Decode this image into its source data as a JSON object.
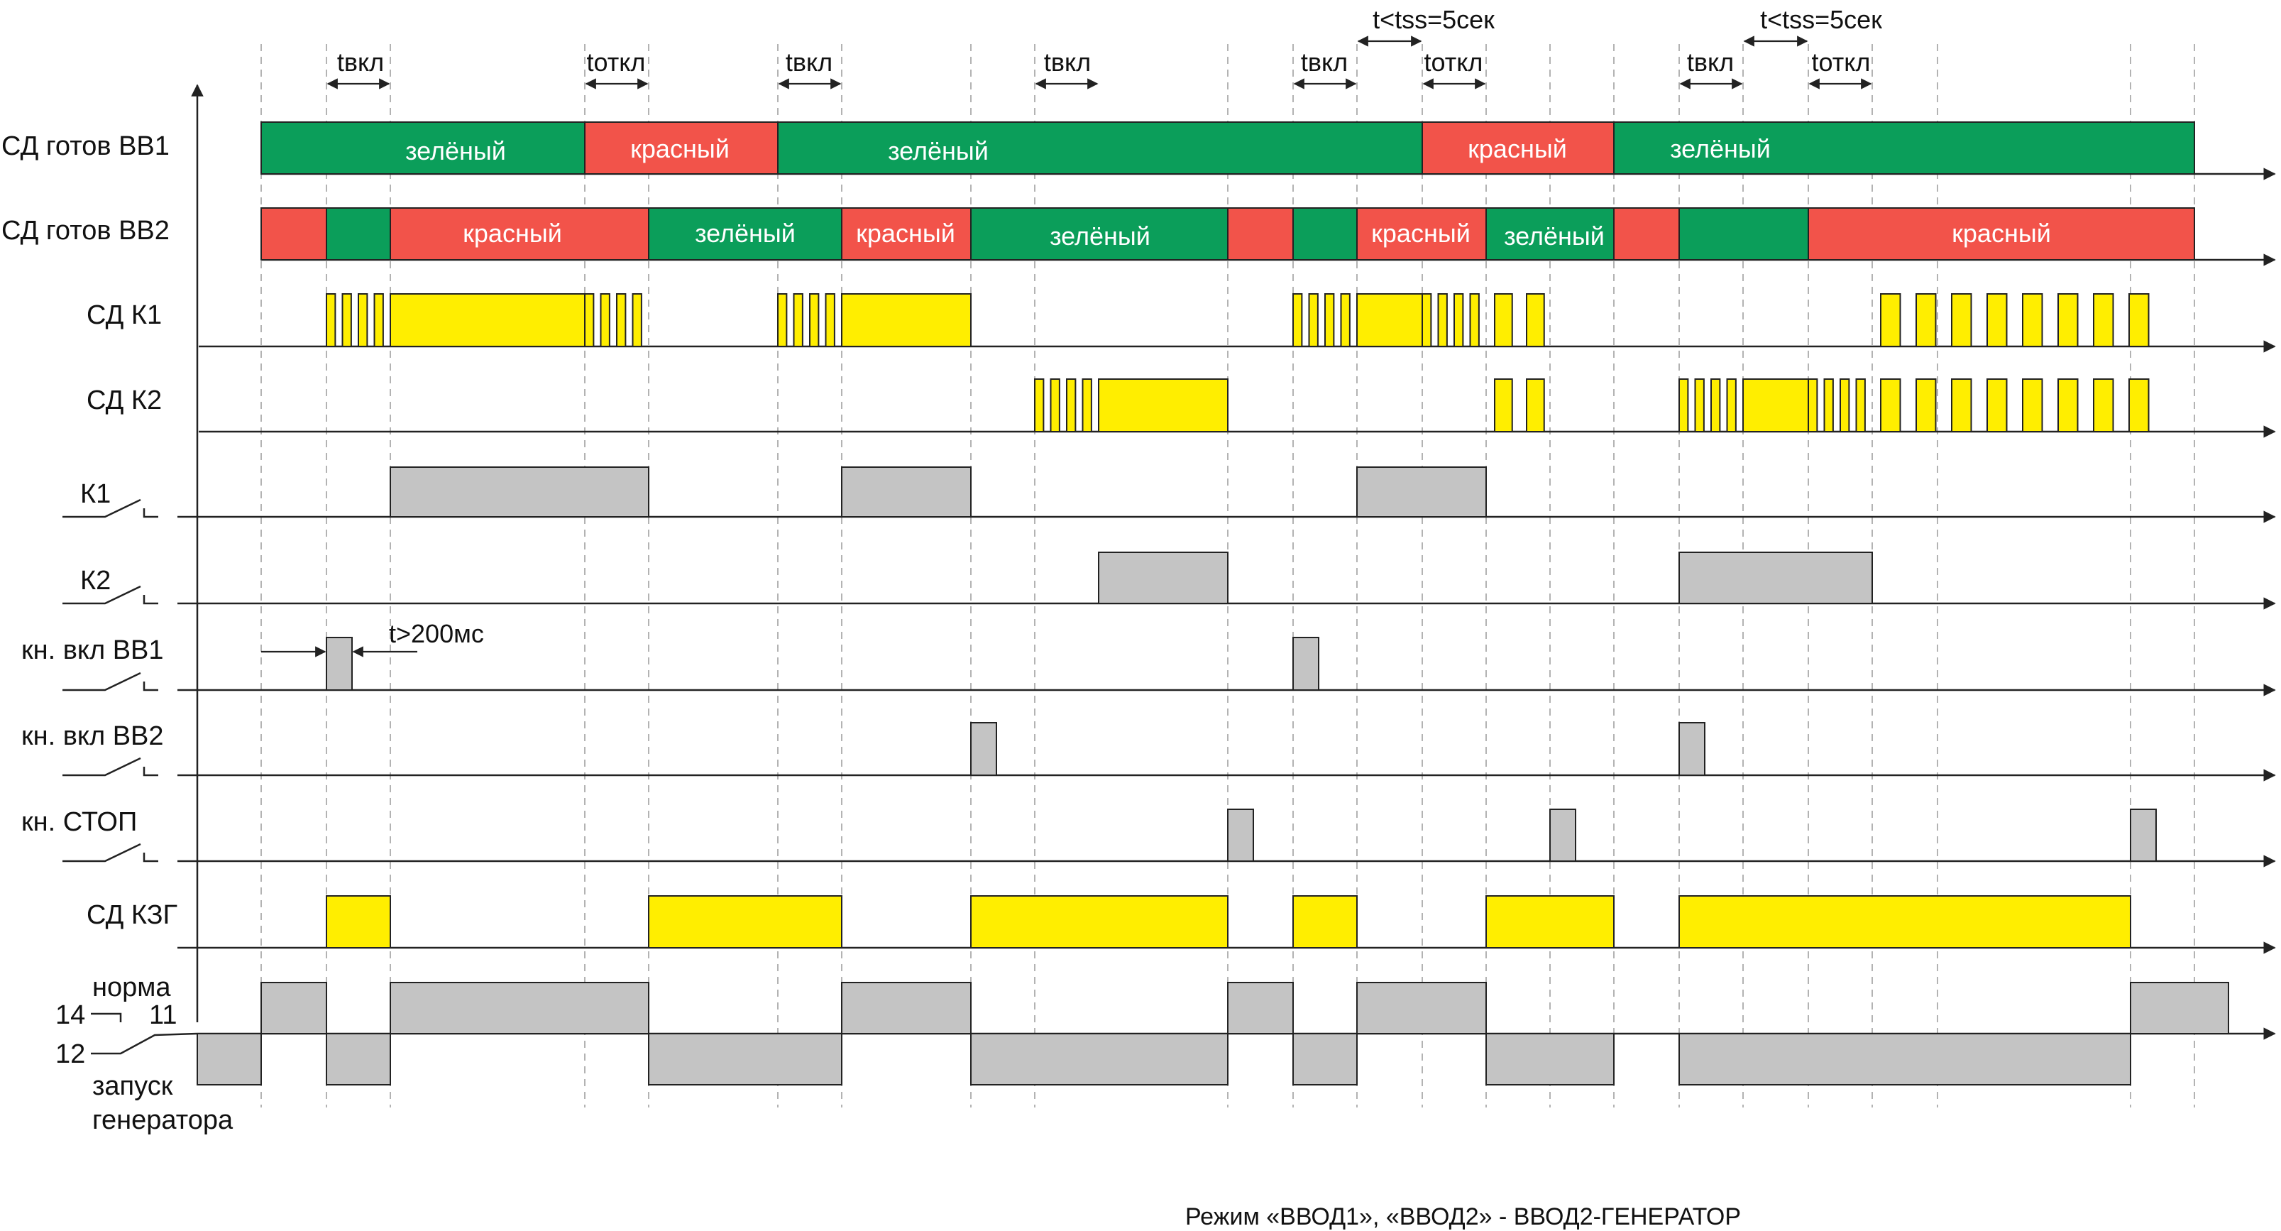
{
  "colors": {
    "green": "#0b9e5a",
    "red": "#f2534a",
    "yellow": "#ffee00",
    "gray": "#c4c4c4",
    "line": "#222222"
  },
  "labels": {
    "sd_bb1": "СД готов ВВ1",
    "sd_bb2": "СД готов ВВ2",
    "sd_k1": "СД К1",
    "sd_k2": "СД К2",
    "k1": "К1",
    "k2": "К2",
    "kn_bb1": "кн. вкл ВВ1",
    "kn_bb2": "кн. вкл ВВ2",
    "kn_stop": "кн. СТОП",
    "sd_kzg": "СД КЗГ",
    "norma": "норма",
    "pin14": "14",
    "pin11": "11",
    "pin12": "12",
    "zapusk": "запуск",
    "generatora": "генератора"
  },
  "timing": {
    "t_on": "tвкл",
    "t_off": "tоткл",
    "t_ss": "t<tss=5сек",
    "t_200": "t>200мс"
  },
  "states": {
    "green": "зелёный",
    "red": "красный"
  },
  "caption": "Режим «ВВОД1», «ВВОД2» - ВВОД2-ГЕНЕРАТОР"
}
